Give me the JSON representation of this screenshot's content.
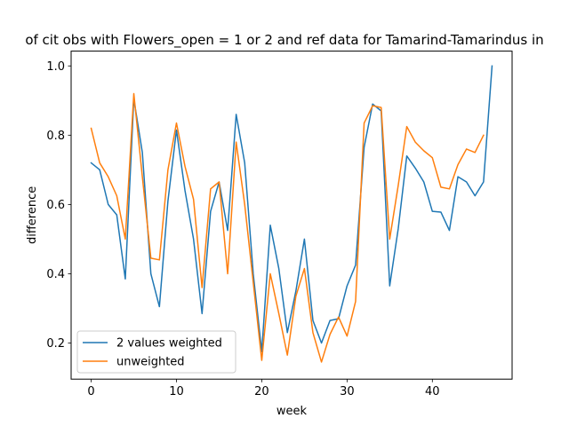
{
  "chart_data": {
    "type": "line",
    "title": "of cit obs with Flowers_open = 1 or 2 and ref data for Tamarind-Tamarindus in",
    "xlabel": "week",
    "ylabel": "difference",
    "xlim": [
      -2.35,
      49.35
    ],
    "ylim": [
      0.0957,
      1.0427
    ],
    "xticks": [
      0,
      10,
      20,
      30,
      40
    ],
    "yticks": [
      0.2,
      0.4,
      0.6,
      0.8,
      1.0
    ],
    "ytick_labels": [
      "0.2",
      "0.4",
      "0.6",
      "0.8",
      "1.0"
    ],
    "grid": false,
    "legend_position": "lower-left",
    "series": [
      {
        "name": "2 values weighted",
        "color": "#1f77b4",
        "x": [
          0,
          1,
          2,
          3,
          4,
          5,
          6,
          7,
          8,
          9,
          10,
          11,
          12,
          13,
          14,
          15,
          16,
          17,
          18,
          19,
          20,
          21,
          22,
          23,
          24,
          25,
          26,
          27,
          28,
          29,
          30,
          31,
          32,
          33,
          34,
          35,
          36,
          37,
          38,
          39,
          40,
          41,
          42,
          43,
          44,
          45,
          46,
          47
        ],
        "y": [
          0.72,
          0.7,
          0.6,
          0.57,
          0.385,
          0.905,
          0.75,
          0.4,
          0.305,
          0.61,
          0.815,
          0.64,
          0.5,
          0.285,
          0.58,
          0.665,
          0.525,
          0.86,
          0.72,
          0.4,
          0.175,
          0.54,
          0.415,
          0.23,
          0.35,
          0.5,
          0.265,
          0.2,
          0.265,
          0.27,
          0.365,
          0.425,
          0.765,
          0.89,
          0.87,
          0.365,
          0.53,
          0.74,
          0.705,
          0.665,
          0.58,
          0.578,
          0.525,
          0.68,
          0.665,
          0.625,
          0.665,
          1.0
        ]
      },
      {
        "name": "unweighted",
        "color": "#ff7f0e",
        "x": [
          0,
          1,
          2,
          3,
          4,
          5,
          6,
          7,
          8,
          9,
          10,
          11,
          12,
          13,
          14,
          15,
          16,
          17,
          18,
          19,
          20,
          21,
          22,
          23,
          24,
          25,
          26,
          27,
          28,
          29,
          30,
          31,
          32,
          33,
          34,
          35,
          36,
          37,
          38,
          39,
          40,
          41,
          42,
          43,
          44,
          45,
          46
        ],
        "y": [
          0.82,
          0.72,
          0.68,
          0.625,
          0.5,
          0.92,
          0.68,
          0.445,
          0.44,
          0.7,
          0.835,
          0.71,
          0.615,
          0.36,
          0.645,
          0.665,
          0.4,
          0.78,
          0.6,
          0.375,
          0.15,
          0.4,
          0.285,
          0.165,
          0.335,
          0.415,
          0.23,
          0.145,
          0.225,
          0.275,
          0.22,
          0.32,
          0.835,
          0.885,
          0.88,
          0.5,
          0.655,
          0.825,
          0.78,
          0.755,
          0.735,
          0.65,
          0.645,
          0.715,
          0.76,
          0.75,
          0.8
        ]
      }
    ]
  }
}
